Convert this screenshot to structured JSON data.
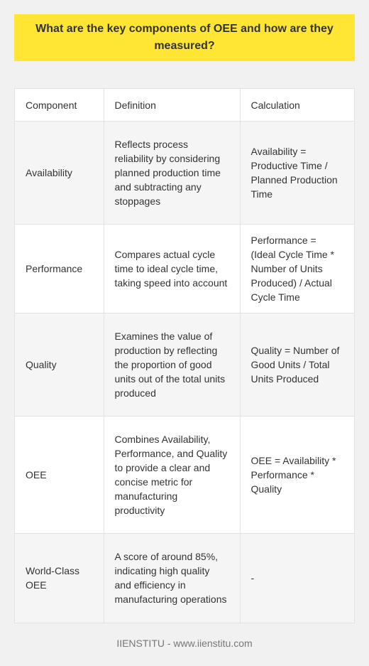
{
  "title": "What are the key components of OEE and how are they measured?",
  "table": {
    "headers": [
      "Component",
      "Definition",
      "Calculation"
    ],
    "rows": [
      {
        "component": "Availability",
        "definition": "Reflects process reliability by considering planned production time and subtracting any stoppages",
        "calculation": "Availability = Productive Time / Planned Production Time"
      },
      {
        "component": "Performance",
        "definition": "Compares actual cycle time to ideal cycle time, taking speed into account",
        "calculation": "Performance = (Ideal Cycle Time * Number of Units Produced) / Actual Cycle Time"
      },
      {
        "component": "Quality",
        "definition": "Examines the value of production by reflecting the proportion of good units out of the total units produced",
        "calculation": "Quality = Number of Good Units / Total Units Produced"
      },
      {
        "component": "OEE",
        "definition": "Combines Availability, Performance, and Quality to provide a clear and concise metric for manufacturing productivity",
        "calculation": "OEE = Availability * Performance * Quality"
      },
      {
        "component": "World-Class OEE",
        "definition": "A score of around 85%, indicating high quality and efficiency in manufacturing operations",
        "calculation": "-"
      }
    ]
  },
  "footer": "IIENSTITU - www.iienstitu.com"
}
